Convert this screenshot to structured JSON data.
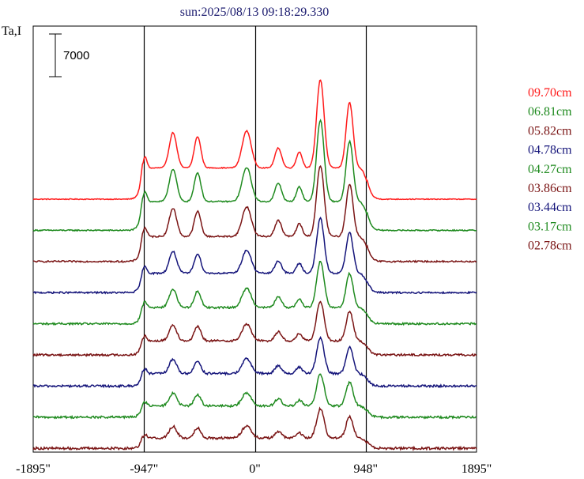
{
  "chart_data": {
    "type": "line",
    "title": "sun:2025/08/13 09:18:29.330",
    "ylabel": "Ta,I",
    "scale_bar": "7000",
    "x_ticks": [
      "-1895\"",
      "-947\"",
      "0\"",
      "948\"",
      "1895\""
    ],
    "x_tick_values": [
      -1895,
      -947,
      0,
      948,
      1895
    ],
    "xlim": [
      -1895,
      1895
    ],
    "vertical_lines_at": [
      -947,
      0,
      948
    ],
    "grid": false,
    "legend_position": "right",
    "series": [
      {
        "name": "09.70cm",
        "color": "#ff1a1a",
        "baseline": 0,
        "scale": 1.0,
        "noise": 0.5
      },
      {
        "name": "06.81cm",
        "color": "#1e8a1e",
        "baseline": 1,
        "scale": 0.92,
        "noise": 0.7
      },
      {
        "name": "05.82cm",
        "color": "#7a1414",
        "baseline": 2,
        "scale": 0.8,
        "noise": 0.9
      },
      {
        "name": "04.78cm",
        "color": "#14147a",
        "baseline": 3,
        "scale": 0.62,
        "noise": 1.0
      },
      {
        "name": "04.27cm",
        "color": "#1e8a1e",
        "baseline": 4,
        "scale": 0.52,
        "noise": 1.1
      },
      {
        "name": "03.86cm",
        "color": "#7a1414",
        "baseline": 5,
        "scale": 0.45,
        "noise": 1.2
      },
      {
        "name": "03.44cm",
        "color": "#14147a",
        "baseline": 6,
        "scale": 0.4,
        "noise": 1.3
      },
      {
        "name": "03.17cm",
        "color": "#1e8a1e",
        "baseline": 7,
        "scale": 0.36,
        "noise": 1.3
      },
      {
        "name": "02.78cm",
        "color": "#7a1414",
        "baseline": 8,
        "scale": 0.33,
        "noise": 1.4
      }
    ],
    "profile": {
      "plateau": [
        {
          "x": -960,
          "level": 0.55
        },
        {
          "x": 960,
          "level": 0.55
        }
      ],
      "peaks": [
        {
          "x": -947,
          "amp": 0.35,
          "w": 30
        },
        {
          "x": -700,
          "amp": 0.62,
          "w": 45
        },
        {
          "x": -490,
          "amp": 0.55,
          "w": 40
        },
        {
          "x": -70,
          "amp": 0.65,
          "w": 55
        },
        {
          "x": 200,
          "amp": 0.35,
          "w": 40
        },
        {
          "x": 380,
          "amp": 0.28,
          "w": 35
        },
        {
          "x": 560,
          "amp": 1.55,
          "w": 45
        },
        {
          "x": 810,
          "amp": 1.15,
          "w": 42
        }
      ]
    }
  }
}
